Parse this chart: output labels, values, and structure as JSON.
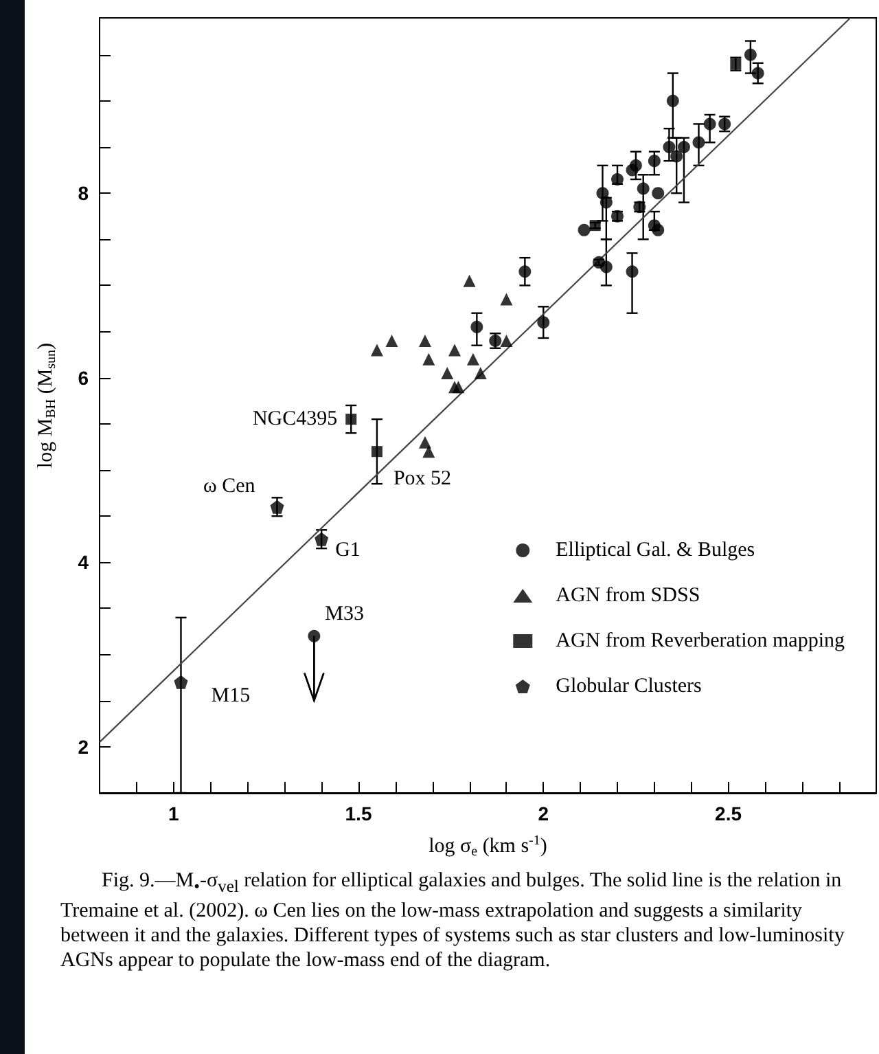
{
  "chart_data": {
    "type": "scatter",
    "xlabel": "log σ$_{e}$ (km s$^{-1}$)",
    "ylabel": "log M$_{BH}$ (M$_{sun}$)",
    "xlim": [
      0.8,
      2.9
    ],
    "ylim": [
      1.5,
      9.9
    ],
    "xticks": [
      {
        "value": 0.9,
        "label": null
      },
      1,
      {
        "value": 1.1,
        "label": null
      },
      {
        "value": 1.2,
        "label": null
      },
      {
        "value": 1.3,
        "label": null
      },
      {
        "value": 1.4,
        "label": null
      },
      1.5,
      {
        "value": 1.6,
        "label": null
      },
      {
        "value": 1.7,
        "label": null
      },
      {
        "value": 1.8,
        "label": null
      },
      {
        "value": 1.9,
        "label": null
      },
      2,
      {
        "value": 2.1,
        "label": null
      },
      {
        "value": 2.2,
        "label": null
      },
      {
        "value": 2.3,
        "label": null
      },
      {
        "value": 2.4,
        "label": null
      },
      2.5,
      {
        "value": 2.6,
        "label": null
      },
      {
        "value": 2.7,
        "label": null
      },
      {
        "value": 2.8,
        "label": null
      }
    ],
    "yticks": [
      2,
      {
        "value": 2.5,
        "label": null
      },
      {
        "value": 3,
        "label": null
      },
      {
        "value": 3.5,
        "label": null
      },
      4,
      {
        "value": 4.5,
        "label": null
      },
      {
        "value": 5,
        "label": null
      },
      {
        "value": 5.5,
        "label": null
      },
      6,
      {
        "value": 6.5,
        "label": null
      },
      {
        "value": 7,
        "label": null
      },
      {
        "value": 7.5,
        "label": null
      },
      8,
      {
        "value": 8.5,
        "label": null
      },
      {
        "value": 9,
        "label": null
      },
      {
        "value": 9.5,
        "label": null
      }
    ],
    "legend": "bottom right",
    "series": [
      {
        "name": "Elliptical Gal. & Bulges",
        "color": "#000000",
        "marker": "circle",
        "x": [
          1.95,
          2.0,
          2.11,
          2.16,
          2.17,
          2.17,
          2.15,
          2.2,
          2.2,
          2.24,
          2.24,
          2.25,
          2.26,
          2.27,
          2.3,
          2.31,
          2.3,
          2.31,
          2.34,
          2.35,
          2.36,
          2.38,
          2.42,
          2.45,
          2.49,
          2.56,
          2.58,
          1.82,
          1.87,
          1.38
        ],
        "values": [
          7.15,
          6.6,
          7.6,
          8.0,
          7.9,
          7.2,
          7.25,
          7.75,
          8.15,
          7.15,
          8.25,
          8.3,
          7.85,
          8.05,
          8.35,
          8.0,
          7.65,
          7.6,
          8.5,
          9.0,
          8.4,
          8.5,
          8.55,
          8.75,
          8.75,
          9.5,
          9.3,
          6.55,
          6.4,
          3.2
        ],
        "errors": [
          0.15,
          0.17,
          null,
          0.3,
          [
            7.5,
            7.95
          ],
          [
            7.0,
            7.5
          ],
          0.03,
          0.05,
          [
            8.1,
            8.3
          ],
          [
            6.7,
            7.35
          ],
          null,
          [
            8.15,
            8.45
          ],
          0.05,
          [
            7.5,
            8.2
          ],
          [
            8.2,
            8.45
          ],
          null,
          [
            7.6,
            7.8
          ],
          null,
          [
            8.35,
            8.7
          ],
          [
            8.6,
            9.3
          ],
          [
            8.0,
            8.6
          ],
          [
            7.9,
            8.6
          ],
          [
            8.3,
            8.75
          ],
          [
            8.55,
            8.85
          ],
          0.08,
          [
            9.3,
            9.65
          ],
          0.11,
          [
            6.35,
            6.7
          ],
          0.08,
          [
            2.5,
            3.2
          ]
        ]
      },
      {
        "name": "AGN from SDSS",
        "color": "#000000",
        "marker": "triangle",
        "x": [
          1.8,
          1.9,
          1.9,
          1.55,
          1.59,
          1.68,
          1.69,
          1.76,
          1.81,
          1.74,
          1.83,
          1.76,
          1.77,
          1.68,
          1.69
        ],
        "values": [
          7.05,
          6.85,
          6.4,
          6.3,
          6.4,
          6.4,
          6.2,
          6.3,
          6.2,
          6.05,
          6.05,
          5.9,
          5.9,
          5.3,
          5.2
        ]
      },
      {
        "name": "AGN from Reverberation mapping",
        "color": "#000000",
        "marker": "square",
        "x": [
          2.14,
          2.52,
          1.48,
          1.55
        ],
        "values": [
          7.65,
          9.4,
          5.55,
          5.2
        ],
        "errors": [
          0.03,
          0.07,
          [
            5.4,
            5.7
          ],
          [
            4.85,
            5.55
          ]
        ]
      },
      {
        "name": "Globular Clusters",
        "color": "#000000",
        "x": [
          1.28,
          1.4,
          1.02
        ],
        "values": [
          4.6,
          4.25,
          2.7
        ],
        "errors": [
          [
            4.5,
            4.7
          ],
          [
            4.15,
            4.35
          ],
          [
            1.5,
            3.4
          ]
        ]
      },
      {
        "type": "line",
        "color": "#444444",
        "marker": "none",
        "x": [
          0.8,
          2.83
        ],
        "values": [
          2.05,
          9.9
        ]
      }
    ],
    "annotations": [
      {
        "text": "NGC4395",
        "x": 1.48,
        "y": 5.55
      },
      {
        "text": "Pox 52",
        "x": 1.55,
        "y": 5.2
      },
      {
        "text": "ω Cen",
        "x": 1.28,
        "y": 4.6
      },
      {
        "text": "G1",
        "x": 1.4,
        "y": 4.25
      },
      {
        "text": "M15",
        "x": 1.02,
        "y": 2.7
      },
      {
        "text": "M33",
        "x": 1.38,
        "y": 3.2
      },
      "Fig. 9.—M$_{•}$-σ$_{vel}$ relation for elliptical galaxies and bulges. The solid line is the relation in Tremaine et al. (2002). ω Cen lies on the low-mass extrapolation and suggests a similarity between it and the galaxies. Different types of systems such as star clusters and low-luminosity AGNs appear to populate the low-mass end of the diagram."
    ]
  }
}
